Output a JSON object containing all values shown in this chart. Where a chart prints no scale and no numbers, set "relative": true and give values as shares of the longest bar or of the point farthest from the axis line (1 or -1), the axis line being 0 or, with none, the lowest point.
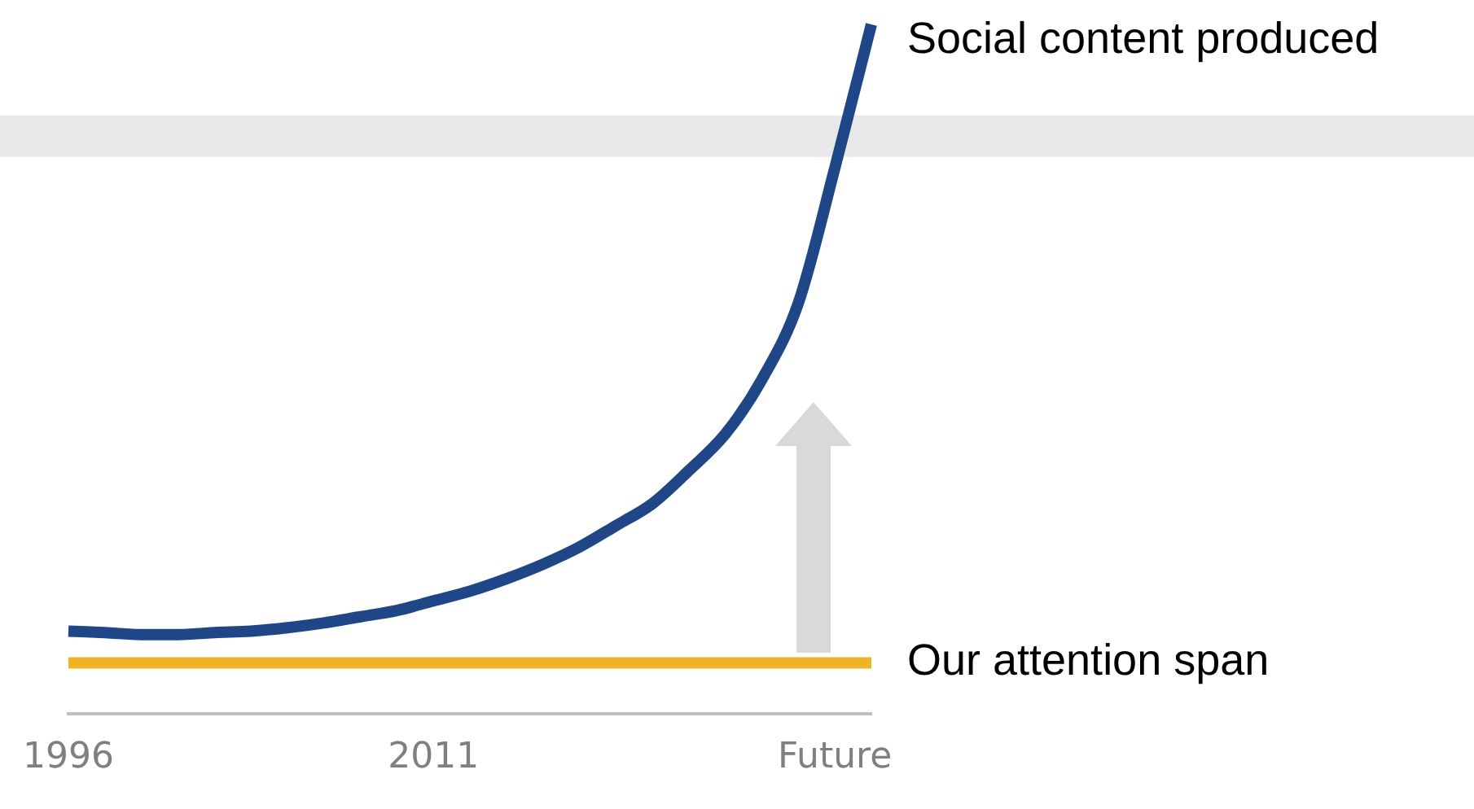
{
  "chart_data": {
    "type": "line",
    "relative": true,
    "categories": [
      "1996",
      null,
      null,
      null,
      null,
      null,
      null,
      null,
      null,
      null,
      "2011",
      null,
      null,
      null,
      null,
      null,
      null,
      null,
      null,
      null,
      null,
      "Future",
      null
    ],
    "series": [
      {
        "name": "Social content produced",
        "color": "#1f4788",
        "values": [
          0.12,
          0.118,
          0.115,
          0.115,
          0.118,
          0.12,
          0.125,
          0.132,
          0.141,
          0.15,
          0.164,
          0.178,
          0.196,
          0.217,
          0.242,
          0.273,
          0.305,
          0.353,
          0.406,
          0.485,
          0.596,
          0.792,
          1
        ]
      },
      {
        "name": "Our attention span",
        "color": "#f0b323",
        "values": [
          0.074,
          0.074,
          0.074,
          0.074,
          0.074,
          0.074,
          0.074,
          0.074,
          0.074,
          0.074,
          0.074,
          0.074,
          0.074,
          0.074,
          0.074,
          0.074,
          0.074,
          0.074,
          0.074,
          0.074,
          0.074,
          0.074,
          0.074
        ]
      }
    ],
    "bands": [
      {
        "axis": "y",
        "from": 0.808,
        "to": 0.868,
        "color": "#e8e8e8"
      }
    ],
    "legend": false,
    "grid": false,
    "marker": "none",
    "line_style": "solid"
  }
}
